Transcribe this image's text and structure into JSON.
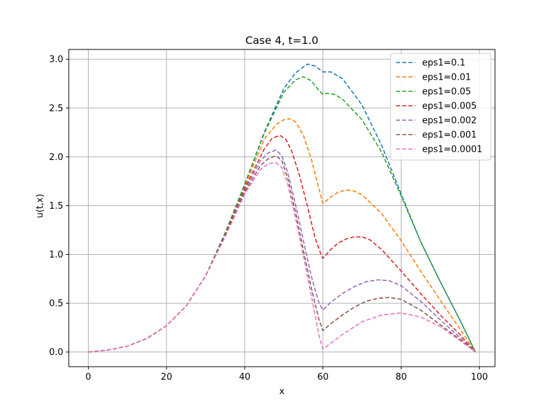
{
  "chart_data": {
    "type": "line",
    "title": "Case 4, t=1.0",
    "xlabel": "x",
    "ylabel": "u(t,x)",
    "xlim": [
      -5,
      104
    ],
    "ylim": [
      -0.15,
      3.1
    ],
    "xticks": [
      0,
      20,
      40,
      60,
      80,
      100
    ],
    "yticks": [
      0.0,
      0.5,
      1.0,
      1.5,
      2.0,
      2.5,
      3.0
    ],
    "xtick_labels": [
      "0",
      "20",
      "40",
      "60",
      "80",
      "100"
    ],
    "ytick_labels": [
      "0.0",
      "0.5",
      "1.0",
      "1.5",
      "2.0",
      "2.5",
      "3.0"
    ],
    "grid": true,
    "line_style": "dashed",
    "legend_position": "top-right",
    "series": [
      {
        "name": "eps1=0.1",
        "color": "#1f77b4",
        "x": [
          0,
          5,
          10,
          15,
          20,
          25,
          30,
          35,
          40,
          45,
          50,
          53,
          56,
          58,
          60,
          62,
          65,
          70,
          75,
          80,
          85,
          90,
          95,
          99
        ],
        "y": [
          0.0,
          0.02,
          0.06,
          0.14,
          0.27,
          0.47,
          0.78,
          1.22,
          1.72,
          2.25,
          2.7,
          2.86,
          2.95,
          2.93,
          2.87,
          2.87,
          2.8,
          2.53,
          2.12,
          1.62,
          1.13,
          0.72,
          0.33,
          0.0
        ]
      },
      {
        "name": "eps1=0.01",
        "color": "#ff7f0e",
        "x": [
          0,
          5,
          10,
          15,
          20,
          25,
          30,
          35,
          40,
          45,
          48,
          50,
          51.5,
          53,
          55,
          57,
          59,
          60,
          62,
          64,
          66,
          68,
          70,
          75,
          80,
          85,
          90,
          95,
          99
        ],
        "y": [
          0.0,
          0.02,
          0.06,
          0.14,
          0.27,
          0.47,
          0.78,
          1.2,
          1.7,
          2.18,
          2.33,
          2.38,
          2.39,
          2.36,
          2.22,
          1.98,
          1.67,
          1.52,
          1.59,
          1.64,
          1.66,
          1.65,
          1.61,
          1.42,
          1.14,
          0.83,
          0.53,
          0.24,
          0.0
        ]
      },
      {
        "name": "eps1=0.05",
        "color": "#2ca02c",
        "x": [
          0,
          5,
          10,
          15,
          20,
          25,
          30,
          35,
          40,
          45,
          50,
          53,
          55,
          57,
          59,
          60,
          61,
          63,
          65,
          70,
          75,
          80,
          85,
          90,
          95,
          99
        ],
        "y": [
          0.0,
          0.02,
          0.06,
          0.14,
          0.27,
          0.47,
          0.78,
          1.22,
          1.72,
          2.24,
          2.66,
          2.79,
          2.82,
          2.78,
          2.68,
          2.64,
          2.65,
          2.64,
          2.59,
          2.38,
          2.05,
          1.6,
          1.13,
          0.72,
          0.33,
          0.0
        ]
      },
      {
        "name": "eps1=0.005",
        "color": "#d62728",
        "x": [
          0,
          5,
          10,
          15,
          20,
          25,
          30,
          35,
          40,
          45,
          47,
          49,
          50.5,
          52,
          54,
          56,
          58,
          59.5,
          60,
          62,
          64,
          66,
          68,
          70,
          72,
          75,
          80,
          85,
          90,
          95,
          99
        ],
        "y": [
          0.0,
          0.02,
          0.06,
          0.14,
          0.27,
          0.47,
          0.78,
          1.2,
          1.68,
          2.08,
          2.19,
          2.22,
          2.18,
          2.06,
          1.81,
          1.5,
          1.17,
          1.0,
          0.96,
          1.05,
          1.12,
          1.16,
          1.18,
          1.18,
          1.15,
          1.05,
          0.83,
          0.6,
          0.38,
          0.18,
          0.0
        ]
      },
      {
        "name": "eps1=0.002",
        "color": "#9467bd",
        "x": [
          0,
          5,
          10,
          15,
          20,
          25,
          30,
          35,
          40,
          44,
          46,
          48,
          49.5,
          51,
          53,
          55,
          57,
          59,
          60,
          62,
          65,
          68,
          71,
          74,
          77,
          80,
          85,
          90,
          95,
          99
        ],
        "y": [
          0.0,
          0.02,
          0.06,
          0.14,
          0.27,
          0.47,
          0.78,
          1.19,
          1.66,
          1.96,
          2.04,
          2.07,
          2.01,
          1.84,
          1.51,
          1.14,
          0.78,
          0.5,
          0.43,
          0.51,
          0.6,
          0.67,
          0.72,
          0.74,
          0.73,
          0.68,
          0.52,
          0.33,
          0.15,
          0.0
        ]
      },
      {
        "name": "eps1=0.001",
        "color": "#8c564b",
        "x": [
          0,
          5,
          10,
          15,
          20,
          25,
          30,
          35,
          40,
          44,
          46,
          48,
          49.5,
          51,
          53,
          55,
          57,
          59,
          60,
          62,
          65,
          68,
          71,
          74,
          77,
          80,
          85,
          90,
          95,
          99
        ],
        "y": [
          0.0,
          0.02,
          0.06,
          0.14,
          0.27,
          0.47,
          0.78,
          1.19,
          1.64,
          1.91,
          1.98,
          2.01,
          1.96,
          1.78,
          1.43,
          1.04,
          0.66,
          0.33,
          0.22,
          0.29,
          0.38,
          0.46,
          0.52,
          0.55,
          0.56,
          0.54,
          0.43,
          0.28,
          0.13,
          0.0
        ]
      },
      {
        "name": "eps1=0.0001",
        "color": "#e377c2",
        "x": [
          0,
          5,
          10,
          15,
          20,
          25,
          30,
          35,
          40,
          44,
          46,
          48,
          49.5,
          51,
          53,
          55,
          57,
          59,
          60,
          62,
          65,
          70,
          75,
          80,
          85,
          90,
          95,
          99
        ],
        "y": [
          0.0,
          0.02,
          0.06,
          0.14,
          0.27,
          0.47,
          0.78,
          1.18,
          1.62,
          1.87,
          1.93,
          1.94,
          1.89,
          1.72,
          1.37,
          0.98,
          0.58,
          0.17,
          0.03,
          0.09,
          0.18,
          0.31,
          0.38,
          0.4,
          0.36,
          0.26,
          0.12,
          0.0
        ]
      }
    ]
  }
}
